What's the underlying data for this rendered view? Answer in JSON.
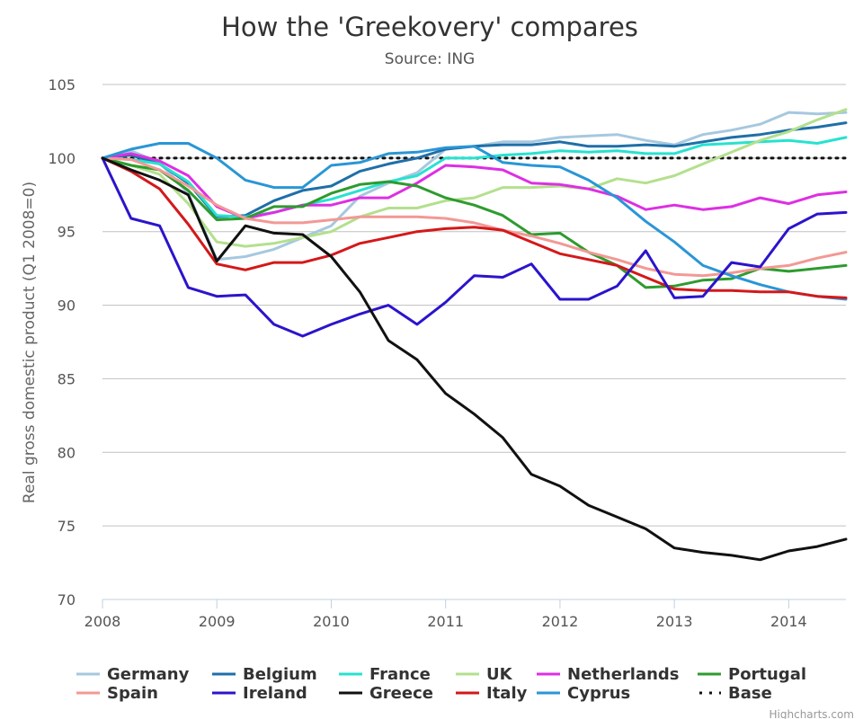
{
  "chart_data": {
    "type": "line",
    "title": "How the 'Greekovery' compares",
    "subtitle": "Source: ING",
    "ylabel": "Real gross domestic product (Q1 2008=0)",
    "xlabel": "",
    "xlim": [
      2008,
      2014.5
    ],
    "ylim": [
      70,
      105
    ],
    "x_ticks": [
      "2008",
      "2009",
      "2010",
      "2011",
      "2012",
      "2013",
      "2014"
    ],
    "y_ticks": [
      "70",
      "75",
      "80",
      "85",
      "90",
      "95",
      "100",
      "105"
    ],
    "grid": true,
    "legend_position": "bottom",
    "credit": "Highcharts.com",
    "x": [
      2008.0,
      2008.25,
      2008.5,
      2008.75,
      2009.0,
      2009.25,
      2009.5,
      2009.75,
      2010.0,
      2010.25,
      2010.5,
      2010.75,
      2011.0,
      2011.25,
      2011.5,
      2011.75,
      2012.0,
      2012.25,
      2012.5,
      2012.75,
      2013.0,
      2013.25,
      2013.5,
      2013.75,
      2014.0,
      2014.25,
      2014.5
    ],
    "series": [
      {
        "name": "Germany",
        "color": "#a6c8df",
        "dash": false,
        "values": [
          100,
          100.5,
          99.7,
          97.6,
          93.1,
          93.3,
          93.8,
          94.6,
          95.4,
          97.4,
          98.3,
          99.0,
          100.6,
          100.8,
          101.1,
          101.1,
          101.4,
          101.5,
          101.6,
          101.2,
          100.9,
          101.6,
          101.9,
          102.3,
          103.1,
          103.0,
          103.1
        ]
      },
      {
        "name": "Belgium",
        "color": "#1f6fa8",
        "dash": false,
        "values": [
          100,
          100.2,
          99.6,
          98.3,
          96.0,
          96.1,
          97.1,
          97.8,
          98.1,
          99.1,
          99.6,
          100.0,
          100.6,
          100.8,
          100.9,
          100.9,
          101.1,
          100.8,
          100.8,
          100.9,
          100.8,
          101.1,
          101.4,
          101.6,
          101.9,
          102.1,
          102.4
        ]
      },
      {
        "name": "France",
        "color": "#27e2d0",
        "dash": false,
        "values": [
          100,
          99.9,
          99.6,
          98.4,
          96.1,
          96.0,
          96.3,
          96.8,
          97.2,
          97.8,
          98.4,
          98.8,
          100.0,
          100.0,
          100.2,
          100.3,
          100.5,
          100.4,
          100.5,
          100.3,
          100.3,
          100.9,
          101.0,
          101.1,
          101.2,
          101.0,
          101.4
        ]
      },
      {
        "name": "UK",
        "color": "#b3e08d",
        "dash": false,
        "values": [
          100,
          99.5,
          98.9,
          96.9,
          94.3,
          94.0,
          94.2,
          94.6,
          95.0,
          96.0,
          96.6,
          96.6,
          97.1,
          97.3,
          98.0,
          98.0,
          98.1,
          97.9,
          98.6,
          98.3,
          98.8,
          99.6,
          100.4,
          101.2,
          101.8,
          102.6,
          103.3
        ]
      },
      {
        "name": "Netherlands",
        "color": "#dd2fe3",
        "dash": false,
        "values": [
          100,
          100.3,
          99.8,
          98.8,
          96.7,
          95.9,
          96.3,
          96.8,
          96.8,
          97.3,
          97.3,
          98.3,
          99.5,
          99.4,
          99.2,
          98.3,
          98.2,
          97.9,
          97.4,
          96.5,
          96.8,
          96.5,
          96.7,
          97.3,
          96.9,
          97.5,
          97.7
        ]
      },
      {
        "name": "Portugal",
        "color": "#2e9b2e",
        "dash": false,
        "values": [
          100,
          99.5,
          99.2,
          97.8,
          95.8,
          95.9,
          96.7,
          96.7,
          97.6,
          98.2,
          98.4,
          98.1,
          97.3,
          96.8,
          96.1,
          94.8,
          94.9,
          93.6,
          92.7,
          91.2,
          91.3,
          91.7,
          91.8,
          92.5,
          92.3,
          92.5,
          92.7
        ]
      },
      {
        "name": "Spain",
        "color": "#f29995",
        "dash": false,
        "values": [
          100,
          99.9,
          99.2,
          98.1,
          96.8,
          95.9,
          95.6,
          95.6,
          95.8,
          96.0,
          96.0,
          96.0,
          95.9,
          95.6,
          95.1,
          94.7,
          94.2,
          93.6,
          93.1,
          92.5,
          92.1,
          92.0,
          92.2,
          92.5,
          92.7,
          93.2,
          93.6
        ]
      },
      {
        "name": "Ireland",
        "color": "#2b14cc",
        "dash": false,
        "values": [
          100,
          95.9,
          95.4,
          91.2,
          90.6,
          90.7,
          88.7,
          87.9,
          88.7,
          89.4,
          90.0,
          88.7,
          90.2,
          92.0,
          91.9,
          92.8,
          90.4,
          90.4,
          91.3,
          93.7,
          90.5,
          90.6,
          92.9,
          92.6,
          95.2,
          96.2,
          96.3
        ]
      },
      {
        "name": "Greece",
        "color": "#111111",
        "dash": false,
        "values": [
          100,
          99.2,
          98.5,
          97.5,
          93.0,
          95.4,
          94.9,
          94.8,
          93.3,
          90.9,
          87.6,
          86.3,
          84.0,
          82.6,
          81.0,
          78.5,
          77.7,
          76.4,
          75.6,
          74.8,
          73.5,
          73.2,
          73.0,
          72.7,
          73.3,
          73.6,
          74.1
        ]
      },
      {
        "name": "Italy",
        "color": "#d4181a",
        "dash": false,
        "values": [
          100,
          99.1,
          97.9,
          95.5,
          92.8,
          92.4,
          92.9,
          92.9,
          93.4,
          94.2,
          94.6,
          95.0,
          95.2,
          95.3,
          95.1,
          94.3,
          93.5,
          93.1,
          92.7,
          91.9,
          91.1,
          91.0,
          91.0,
          90.9,
          90.9,
          90.6,
          90.5
        ]
      },
      {
        "name": "Cyprus",
        "color": "#2996d6",
        "dash": false,
        "values": [
          100,
          100.6,
          101.0,
          101.0,
          100.0,
          98.5,
          98.0,
          98.0,
          99.5,
          99.7,
          100.3,
          100.4,
          100.7,
          100.8,
          99.7,
          99.5,
          99.4,
          98.5,
          97.3,
          95.7,
          94.3,
          92.7,
          92.0,
          91.4,
          90.9,
          90.6,
          90.4
        ]
      },
      {
        "name": "Base",
        "color": "#111111",
        "dash": true,
        "values": [
          100,
          100,
          100,
          100,
          100,
          100,
          100,
          100,
          100,
          100,
          100,
          100,
          100,
          100,
          100,
          100,
          100,
          100,
          100,
          100,
          100,
          100,
          100,
          100,
          100,
          100,
          100
        ]
      }
    ]
  }
}
